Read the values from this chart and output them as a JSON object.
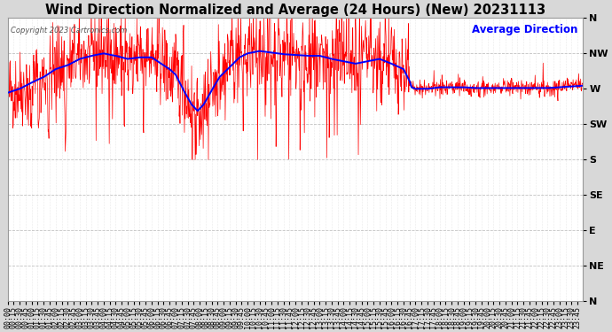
{
  "title": "Wind Direction Normalized and Average (24 Hours) (New) 20231113",
  "copyright": "Copyright 2023 Cartronics.com",
  "legend_label": "Average Direction",
  "legend_color": "blue",
  "red_line_color": "red",
  "blue_line_color": "blue",
  "background_color": "#d8d8d8",
  "plot_bg_color": "#ffffff",
  "grid_color": "#aaaaaa",
  "ytick_labels": [
    "N",
    "NW",
    "W",
    "SW",
    "S",
    "SE",
    "E",
    "NE",
    "N"
  ],
  "ytick_values": [
    360,
    315,
    270,
    225,
    180,
    135,
    90,
    45,
    0
  ],
  "ylim": [
    0,
    360
  ],
  "title_fontsize": 10.5,
  "tick_fontsize": 6,
  "seed": 42
}
